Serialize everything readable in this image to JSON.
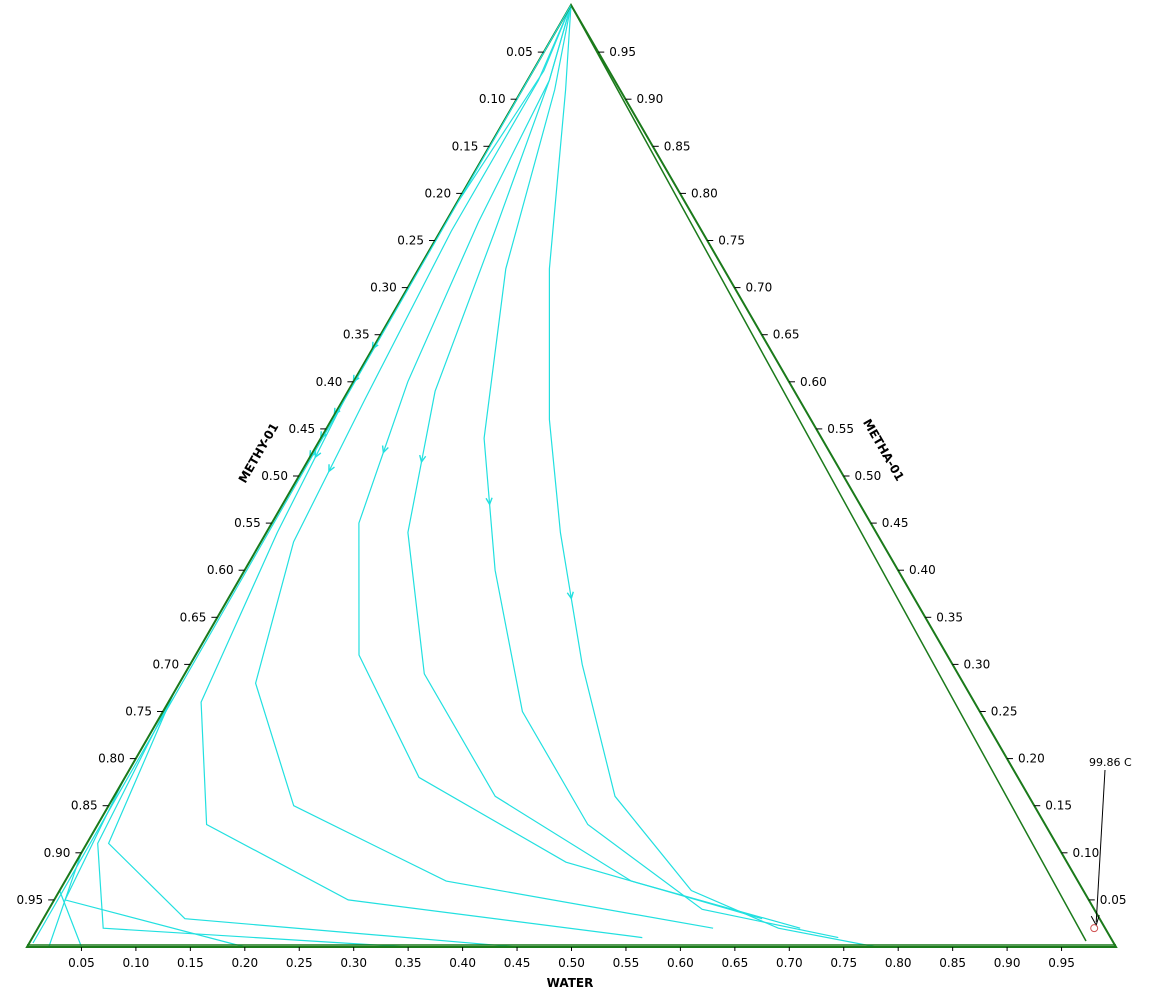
{
  "chart_data": {
    "type": "ternary",
    "axes": {
      "bottom": "WATER",
      "left": "METHY-01",
      "right": "METHA-01"
    },
    "ticks": [
      "0.05",
      "0.10",
      "0.15",
      "0.20",
      "0.25",
      "0.30",
      "0.35",
      "0.40",
      "0.45",
      "0.50",
      "0.55",
      "0.60",
      "0.65",
      "0.70",
      "0.75",
      "0.80",
      "0.85",
      "0.90",
      "0.95"
    ],
    "frame_color": "#1b7a1b",
    "curve_color": "#22e0e0",
    "annotation": {
      "label": "99.86 C",
      "point": {
        "water": 0.97,
        "methy": 0.01,
        "metha": 0.02
      }
    },
    "residue_curves": [
      {
        "points": [
          [
            0.0,
            1.0
          ],
          [
            0.04,
            0.91
          ],
          [
            0.12,
            0.72
          ],
          [
            0.2,
            0.56
          ],
          [
            0.27,
            0.44
          ],
          [
            0.36,
            0.3
          ],
          [
            0.46,
            0.16
          ],
          [
            0.58,
            0.06
          ],
          [
            0.68,
            0.02
          ],
          [
            0.78,
            0.0
          ]
        ]
      },
      {
        "points": [
          [
            0.0,
            1.0
          ],
          [
            0.03,
            0.91
          ],
          [
            0.08,
            0.72
          ],
          [
            0.15,
            0.54
          ],
          [
            0.23,
            0.4
          ],
          [
            0.33,
            0.25
          ],
          [
            0.45,
            0.13
          ],
          [
            0.6,
            0.04
          ],
          [
            0.74,
            0.01
          ]
        ]
      },
      {
        "points": [
          [
            0.0,
            1.0
          ],
          [
            0.02,
            0.92
          ],
          [
            0.05,
            0.76
          ],
          [
            0.08,
            0.59
          ],
          [
            0.13,
            0.44
          ],
          [
            0.22,
            0.29
          ],
          [
            0.35,
            0.16
          ],
          [
            0.52,
            0.07
          ],
          [
            0.7,
            0.02
          ]
        ]
      },
      {
        "points": [
          [
            0.0,
            1.0
          ],
          [
            0.02,
            0.92
          ],
          [
            0.03,
            0.77
          ],
          [
            0.05,
            0.6
          ],
          [
            0.08,
            0.45
          ],
          [
            0.15,
            0.31
          ],
          [
            0.27,
            0.18
          ],
          [
            0.45,
            0.09
          ],
          [
            0.66,
            0.03
          ]
        ]
      },
      {
        "points": [
          [
            0.0,
            1.0
          ],
          [
            0.01,
            0.92
          ],
          [
            0.01,
            0.76
          ],
          [
            0.02,
            0.58
          ],
          [
            0.03,
            0.43
          ],
          [
            0.07,
            0.28
          ],
          [
            0.17,
            0.15
          ],
          [
            0.35,
            0.07
          ],
          [
            0.62,
            0.02
          ]
        ]
      },
      {
        "points": [
          [
            0.0,
            1.0
          ],
          [
            0.01,
            0.93
          ],
          [
            0.0,
            0.78
          ],
          [
            0.0,
            0.6
          ],
          [
            0.01,
            0.44
          ],
          [
            0.03,
            0.26
          ],
          [
            0.1,
            0.13
          ],
          [
            0.27,
            0.05
          ],
          [
            0.56,
            0.01
          ]
        ]
      },
      {
        "points": [
          [
            0.0,
            1.0
          ],
          [
            0.0,
            0.94
          ],
          [
            0.0,
            0.81
          ],
          [
            0.0,
            0.63
          ],
          [
            0.0,
            0.45
          ],
          [
            0.0,
            0.27
          ],
          [
            0.02,
            0.11
          ],
          [
            0.13,
            0.03
          ],
          [
            0.45,
            0.0
          ]
        ]
      },
      {
        "points": [
          [
            0.0,
            1.0
          ],
          [
            0.0,
            0.95
          ],
          [
            0.0,
            0.85
          ],
          [
            0.0,
            0.67
          ],
          [
            0.0,
            0.46
          ],
          [
            0.0,
            0.27
          ],
          [
            0.01,
            0.11
          ],
          [
            0.06,
            0.02
          ],
          [
            0.35,
            0.0
          ]
        ]
      },
      {
        "points": [
          [
            0.0,
            1.0
          ],
          [
            0.0,
            0.96
          ],
          [
            0.0,
            0.87
          ],
          [
            0.0,
            0.72
          ],
          [
            0.0,
            0.55
          ],
          [
            0.0,
            0.36
          ],
          [
            0.0,
            0.18
          ],
          [
            0.01,
            0.05
          ],
          [
            0.2,
            0.0
          ]
        ]
      },
      {
        "points": [
          [
            0.0,
            1.0
          ],
          [
            0.0,
            0.98
          ],
          [
            0.0,
            0.92
          ],
          [
            0.0,
            0.8
          ],
          [
            0.0,
            0.62
          ],
          [
            0.0,
            0.42
          ],
          [
            0.0,
            0.22
          ],
          [
            0.0,
            0.06
          ],
          [
            0.05,
            0.0
          ],
          [
            0.3,
            0.0
          ]
        ]
      },
      {
        "points": [
          [
            0.0,
            1.0
          ],
          [
            0.0,
            0.99
          ],
          [
            0.0,
            0.95
          ],
          [
            0.0,
            0.85
          ],
          [
            0.0,
            0.7
          ],
          [
            0.0,
            0.5
          ],
          [
            0.0,
            0.28
          ],
          [
            0.0,
            0.1
          ],
          [
            0.02,
            0.0
          ],
          [
            0.4,
            0.0
          ]
        ]
      }
    ]
  }
}
